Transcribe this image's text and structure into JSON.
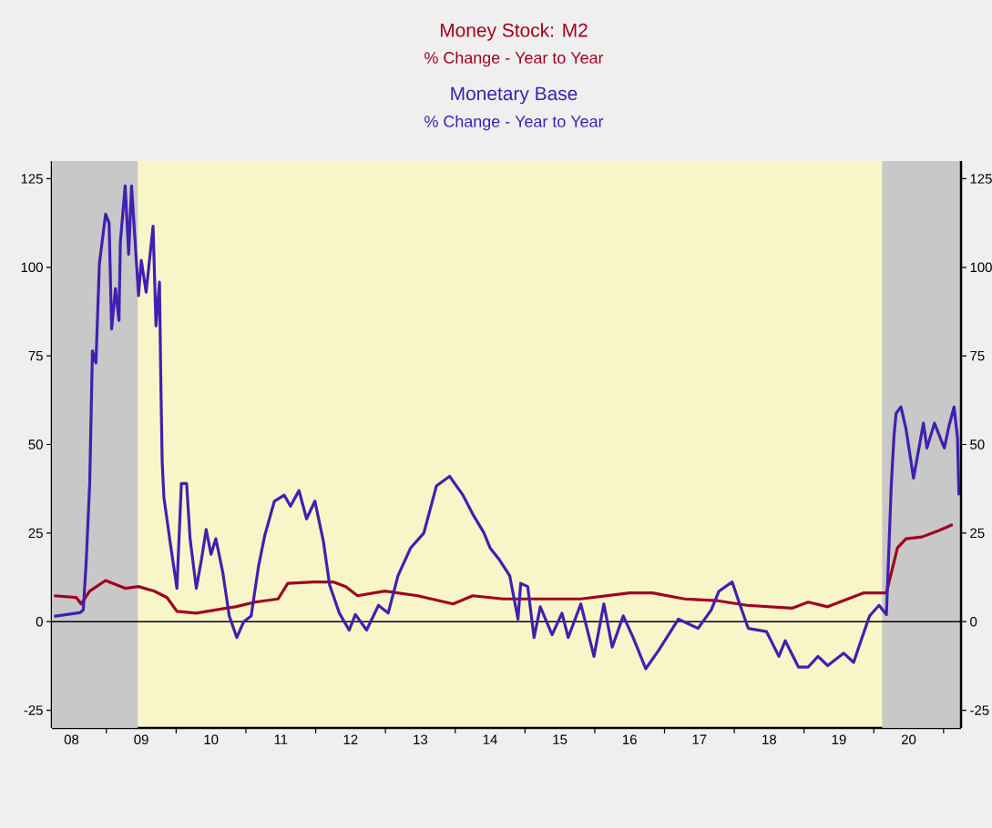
{
  "chart_data": {
    "type": "line",
    "annotations": [
      "% Change - Year to Year",
      "% Change - Year to Year"
    ],
    "xlim": [
      "2008-03-20",
      "2021-04-01"
    ],
    "xticks": [
      {
        "value": "2008-07-01",
        "label": "08"
      },
      {
        "value": "2009-07-01",
        "label": "09"
      },
      {
        "value": "2010-07-01",
        "label": "10"
      },
      {
        "value": "2011-07-01",
        "label": "11"
      },
      {
        "value": "2012-07-01",
        "label": "12"
      },
      {
        "value": "2013-07-01",
        "label": "13"
      },
      {
        "value": "2014-07-01",
        "label": "14"
      },
      {
        "value": "2015-07-01",
        "label": "15"
      },
      {
        "value": "2016-07-01",
        "label": "16"
      },
      {
        "value": "2017-07-01",
        "label": "17"
      },
      {
        "value": "2018-07-01",
        "label": "18"
      },
      {
        "value": "2019-07-01",
        "label": "19"
      },
      {
        "value": "2020-07-01",
        "label": "20"
      },
      {
        "value": "2009-01-01",
        "label": null
      },
      {
        "value": "2010-01-01",
        "label": null
      },
      {
        "value": "2011-01-01",
        "label": null
      },
      {
        "value": "2012-01-01",
        "label": null
      },
      {
        "value": "2013-01-01",
        "label": null
      },
      {
        "value": "2014-01-01",
        "label": null
      },
      {
        "value": "2015-01-01",
        "label": null
      },
      {
        "value": "2016-01-01",
        "label": null
      },
      {
        "value": "2017-01-01",
        "label": null
      },
      {
        "value": "2018-01-01",
        "label": null
      },
      {
        "value": "2019-01-01",
        "label": null
      },
      {
        "value": "2020-01-01",
        "label": null
      },
      {
        "value": "2021-01-01",
        "label": null
      }
    ],
    "ylim": [
      -30,
      130
    ],
    "yticks": [
      -25,
      0,
      25,
      50,
      75,
      100,
      125
    ],
    "y2lim": [
      -30,
      130
    ],
    "y2ticks": [
      -25,
      0,
      25,
      50,
      75,
      100,
      125
    ],
    "legend": "top",
    "marker": "none",
    "line_style": "solid",
    "grid": false,
    "ref_lines": [
      {
        "axis": "y",
        "value": 0,
        "color": "#000000"
      }
    ],
    "bands": [
      {
        "axis": "x",
        "from": "2008-03-20",
        "to": "2009-06-13",
        "color": "#c8c8c8"
      },
      {
        "axis": "x",
        "from": "2020-02-14",
        "to": "2021-04-01",
        "color": "#c8c8c8"
      }
    ],
    "series": [
      {
        "name": "Money Stock: M2",
        "color": "#a00020",
        "x": [
          "2008-04-01",
          "2008-07-26",
          "2008-08-21",
          "2008-10-05",
          "2008-12-27",
          "2009-04-08",
          "2009-06-17",
          "2009-09-09",
          "2009-11-14",
          "2010-01-05",
          "2010-04-15",
          "2010-07-26",
          "2010-11-07",
          "2011-02-18",
          "2011-06-17",
          "2011-08-07",
          "2011-12-20",
          "2012-04-01",
          "2012-06-06",
          "2012-08-07",
          "2012-12-27",
          "2013-06-17",
          "2013-12-20",
          "2014-04-01",
          "2014-09-09",
          "2015-05-03",
          "2015-10-19",
          "2016-07-01",
          "2016-10-28",
          "2017-04-15",
          "2017-10-05",
          "2018-03-06",
          "2018-10-28",
          "2019-01-23",
          "2019-05-03",
          "2019-11-07",
          "2020-03-06",
          "2020-05-03",
          "2020-06-17",
          "2020-09-09",
          "2020-12-02",
          "2021-02-18"
        ],
        "values": [
          7.3,
          6.8,
          5,
          8.6,
          11.6,
          9.4,
          9.9,
          8.6,
          6.8,
          2.9,
          2.4,
          3.3,
          4.2,
          5.5,
          6.4,
          10.8,
          11.2,
          11.2,
          9.9,
          7.3,
          8.6,
          7.3,
          5,
          7.3,
          6.4,
          6.4,
          6.4,
          8.1,
          8.1,
          6.4,
          5.9,
          4.6,
          3.8,
          5.5,
          4.2,
          8.1,
          8.1,
          20.8,
          23.4,
          23.9,
          25.6,
          27.4
        ]
      },
      {
        "name": "Monetary Base",
        "color": "#4020b0",
        "x": [
          "2008-04-01",
          "2008-06-06",
          "2008-08-14",
          "2008-09-02",
          "2008-09-17",
          "2008-10-05",
          "2008-10-19",
          "2008-11-07",
          "2008-11-25",
          "2008-12-27",
          "2009-01-15",
          "2009-01-28",
          "2009-02-18",
          "2009-03-06",
          "2009-03-13",
          "2009-04-08",
          "2009-04-26",
          "2009-05-11",
          "2009-06-17",
          "2009-07-01",
          "2009-07-26",
          "2009-09-02",
          "2009-09-17",
          "2009-10-05",
          "2009-10-12",
          "2009-10-19",
          "2009-10-28",
          "2009-12-02",
          "2010-01-05",
          "2010-01-28",
          "2010-02-25",
          "2010-03-13",
          "2010-04-15",
          "2010-05-11",
          "2010-06-06",
          "2010-07-01",
          "2010-07-26",
          "2010-09-02",
          "2010-10-05",
          "2010-11-14",
          "2010-12-20",
          "2011-01-28",
          "2011-03-06",
          "2011-04-08",
          "2011-05-28",
          "2011-07-19",
          "2011-08-21",
          "2011-10-05",
          "2011-11-14",
          "2011-12-27",
          "2012-02-11",
          "2012-03-13",
          "2012-05-03",
          "2012-06-24",
          "2012-07-26",
          "2012-09-24",
          "2012-11-25",
          "2013-01-15",
          "2013-03-06",
          "2013-05-11",
          "2013-07-19",
          "2013-09-24",
          "2013-12-02",
          "2014-02-11",
          "2014-04-01",
          "2014-05-28",
          "2014-07-01",
          "2014-08-21",
          "2014-10-12",
          "2014-11-25",
          "2014-12-09",
          "2015-01-15",
          "2015-02-18",
          "2015-03-20",
          "2015-05-21",
          "2015-07-12",
          "2015-08-14",
          "2015-10-19",
          "2015-12-27",
          "2016-02-18",
          "2016-04-01",
          "2016-05-28",
          "2016-07-19",
          "2016-09-24",
          "2016-12-02",
          "2017-03-13",
          "2017-06-24",
          "2017-09-02",
          "2017-10-12",
          "2017-12-20",
          "2018-01-23",
          "2018-03-13",
          "2018-06-17",
          "2018-08-21",
          "2018-09-24",
          "2018-12-02",
          "2019-01-23",
          "2019-03-13",
          "2019-05-03",
          "2019-07-26",
          "2019-09-17",
          "2019-10-19",
          "2019-12-09",
          "2020-01-28",
          "2020-03-06",
          "2020-04-01",
          "2020-04-15",
          "2020-04-26",
          "2020-05-21",
          "2020-06-17",
          "2020-07-26",
          "2020-09-17",
          "2020-10-05",
          "2020-11-14",
          "2020-12-20",
          "2021-01-05",
          "2021-01-28",
          "2021-02-25",
          "2021-03-13",
          "2021-03-20"
        ],
        "values": [
          1.5,
          2,
          2.5,
          3.3,
          17,
          39,
          76.4,
          73,
          101,
          115,
          112.5,
          82.6,
          94,
          85,
          107,
          123,
          103.7,
          123,
          92,
          102,
          93,
          111.6,
          83.5,
          95.8,
          67.6,
          45,
          35,
          21.7,
          9.4,
          39,
          39,
          23.4,
          9.4,
          17.3,
          26,
          19,
          23.4,
          13.8,
          1.6,
          -4.5,
          0,
          1.6,
          15.6,
          24.3,
          34,
          35.7,
          32.6,
          37,
          29,
          34,
          22.6,
          10.3,
          2.4,
          -2.4,
          2,
          -2.4,
          4.6,
          2.4,
          13,
          20.8,
          25,
          38.3,
          41,
          35.7,
          30.4,
          25.2,
          20.8,
          17.3,
          13,
          0.7,
          10.8,
          9.9,
          -4.5,
          4.2,
          -3.7,
          2.4,
          -4.5,
          5,
          -9.8,
          5,
          -7.2,
          1.6,
          -4.5,
          -13.3,
          -8,
          0.7,
          -1.9,
          3.3,
          8.6,
          11.2,
          5.9,
          -1.9,
          -2.8,
          -9.8,
          -5.4,
          -12.8,
          -12.8,
          -9.8,
          -12.4,
          -8.9,
          -11.5,
          -6.3,
          1.6,
          4.6,
          2,
          38.3,
          52.3,
          58.8,
          60.6,
          54.4,
          40.5,
          56,
          49,
          56,
          51,
          49,
          55,
          60.6,
          51.8,
          35.7
        ]
      }
    ]
  }
}
